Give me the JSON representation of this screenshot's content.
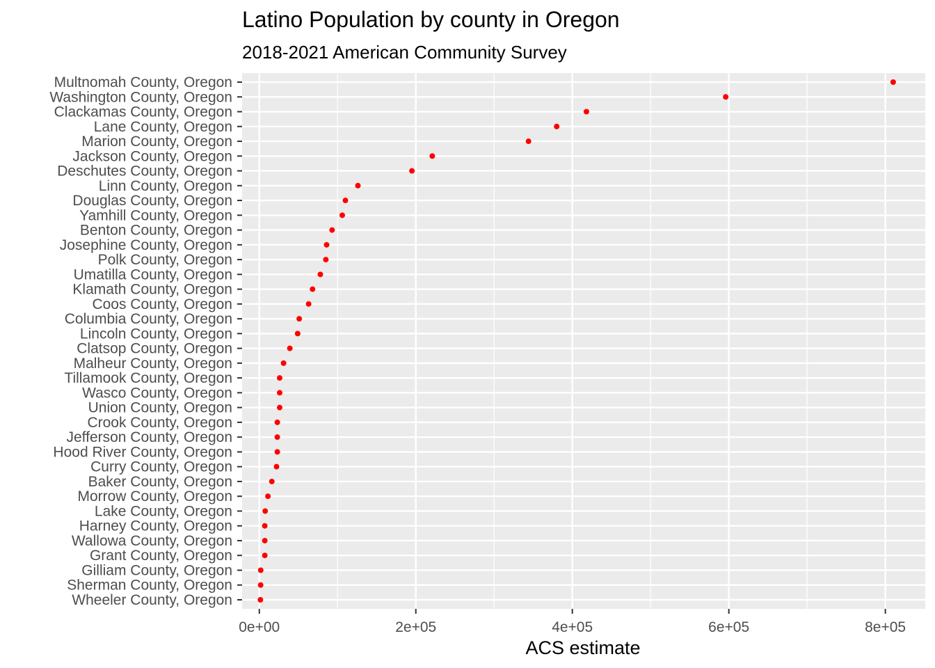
{
  "chart_data": {
    "type": "scatter",
    "title": "Latino Population by county in Oregon",
    "subtitle": "2018-2021 American Community Survey",
    "xlabel": "ACS estimate",
    "ylabel": "",
    "xlim": [
      -22000,
      851000
    ],
    "xticks": [
      0,
      200000,
      400000,
      600000,
      800000
    ],
    "xtick_labels": [
      "0e+00",
      "2e+05",
      "4e+05",
      "6e+05",
      "8e+05"
    ],
    "grid": true,
    "point_color": "#ff0000",
    "panel_color": "#ebebeb",
    "grid_color": "#ffffff",
    "categories": [
      "Multnomah County, Oregon",
      "Washington County, Oregon",
      "Clackamas County, Oregon",
      "Lane County, Oregon",
      "Marion County, Oregon",
      "Jackson County, Oregon",
      "Deschutes County, Oregon",
      "Linn County, Oregon",
      "Douglas County, Oregon",
      "Yamhill County, Oregon",
      "Benton County, Oregon",
      "Josephine County, Oregon",
      "Polk County, Oregon",
      "Umatilla County, Oregon",
      "Klamath County, Oregon",
      "Coos County, Oregon",
      "Columbia County, Oregon",
      "Lincoln County, Oregon",
      "Clatsop County, Oregon",
      "Malheur County, Oregon",
      "Tillamook County, Oregon",
      "Wasco County, Oregon",
      "Union County, Oregon",
      "Crook County, Oregon",
      "Jefferson County, Oregon",
      "Hood River County, Oregon",
      "Curry County, Oregon",
      "Baker County, Oregon",
      "Morrow County, Oregon",
      "Lake County, Oregon",
      "Harney County, Oregon",
      "Wallowa County, Oregon",
      "Grant County, Oregon",
      "Gilliam County, Oregon",
      "Sherman County, Oregon",
      "Wheeler County, Oregon"
    ],
    "values": [
      810000,
      596000,
      418000,
      380000,
      344000,
      221000,
      195000,
      126000,
      110000,
      106000,
      93000,
      86000,
      85000,
      78000,
      68000,
      63000,
      51000,
      49000,
      39000,
      31000,
      26000,
      26000,
      26000,
      23000,
      23000,
      23000,
      22000,
      16000,
      11000,
      7500,
      7000,
      7000,
      7000,
      1800,
      1700,
      1400
    ]
  }
}
